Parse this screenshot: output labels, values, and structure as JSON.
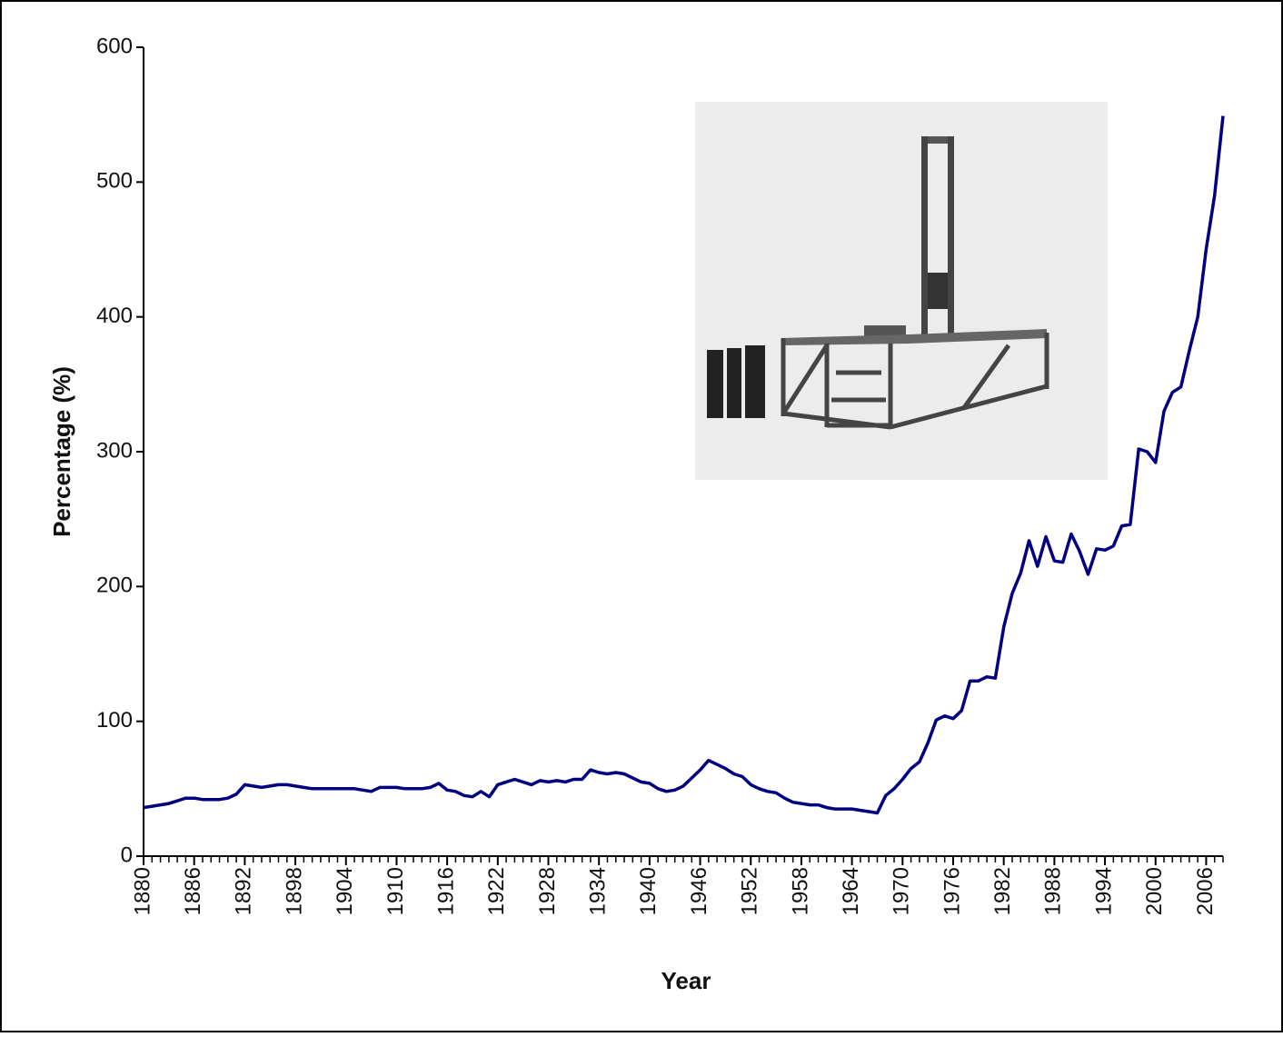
{
  "chart_data": {
    "type": "line",
    "x_label": "Year",
    "y_label": "Percentage (%)",
    "x": [
      1880,
      1881,
      1882,
      1883,
      1884,
      1885,
      1886,
      1887,
      1888,
      1889,
      1890,
      1891,
      1892,
      1893,
      1894,
      1895,
      1896,
      1897,
      1898,
      1899,
      1900,
      1901,
      1902,
      1903,
      1904,
      1905,
      1906,
      1907,
      1908,
      1909,
      1910,
      1911,
      1912,
      1913,
      1914,
      1915,
      1916,
      1917,
      1918,
      1919,
      1920,
      1921,
      1922,
      1923,
      1924,
      1925,
      1926,
      1927,
      1928,
      1929,
      1930,
      1931,
      1932,
      1933,
      1934,
      1935,
      1936,
      1937,
      1938,
      1939,
      1940,
      1941,
      1942,
      1943,
      1944,
      1945,
      1946,
      1947,
      1948,
      1949,
      1950,
      1951,
      1952,
      1953,
      1954,
      1955,
      1956,
      1957,
      1958,
      1959,
      1960,
      1961,
      1962,
      1963,
      1964,
      1965,
      1966,
      1967,
      1968,
      1969,
      1970,
      1971,
      1972,
      1973,
      1974,
      1975,
      1976,
      1977,
      1978,
      1979,
      1980,
      1981,
      1982,
      1983,
      1984,
      1985,
      1986,
      1987,
      1988,
      1989,
      1990,
      1991,
      1992,
      1993,
      1994,
      1995,
      1996,
      1997,
      1998,
      1999,
      2000,
      2001,
      2002,
      2003,
      2004,
      2005,
      2006,
      2007,
      2008
    ],
    "series": [
      {
        "color": "#000080",
        "values": [
          36,
          37,
          38,
          39,
          41,
          43,
          43,
          42,
          42,
          42,
          43,
          46,
          53,
          52,
          51,
          52,
          53,
          53,
          52,
          51,
          50,
          50,
          50,
          50,
          50,
          50,
          49,
          48,
          51,
          51,
          51,
          50,
          50,
          50,
          51,
          54,
          49,
          48,
          45,
          44,
          48,
          44,
          53,
          55,
          57,
          55,
          53,
          56,
          55,
          56,
          55,
          57,
          57,
          64,
          62,
          61,
          62,
          61,
          58,
          55,
          54,
          50,
          48,
          49,
          52,
          58,
          64,
          71,
          68,
          65,
          61,
          59,
          53,
          50,
          48,
          47,
          43,
          40,
          39,
          38,
          38,
          36,
          35,
          35,
          35,
          34,
          33,
          32,
          45,
          50,
          57,
          65,
          70,
          84,
          101,
          104,
          102,
          108,
          130,
          130,
          133,
          132,
          170,
          195,
          210,
          234,
          215,
          237,
          219,
          218,
          239,
          226,
          209,
          228,
          227,
          230,
          245,
          246,
          302,
          300,
          292,
          330,
          344,
          348,
          375,
          400,
          450,
          490,
          549
        ]
      }
    ],
    "xlim": [
      1880,
      2008
    ],
    "xticks": [
      1880,
      1886,
      1892,
      1898,
      1904,
      1910,
      1916,
      1922,
      1928,
      1934,
      1940,
      1946,
      1952,
      1958,
      1964,
      1970,
      1976,
      1982,
      1988,
      1994,
      2000,
      2006
    ],
    "ylim": [
      0,
      600
    ],
    "yticks": [
      0,
      100,
      200,
      300,
      400,
      500,
      600
    ]
  }
}
